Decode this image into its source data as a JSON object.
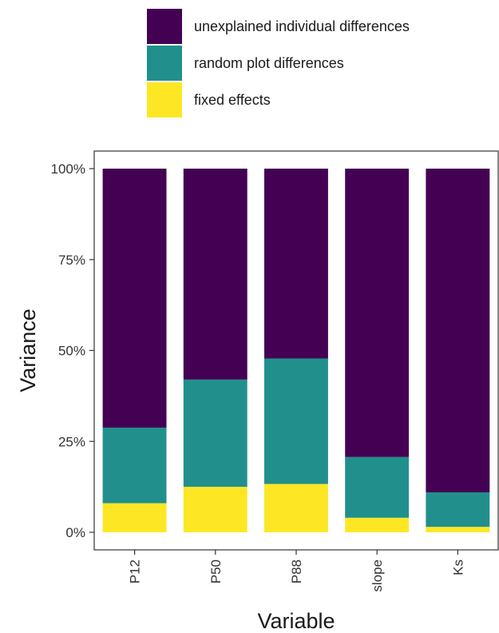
{
  "chart_data": {
    "type": "bar",
    "stacked": true,
    "categories": [
      "P12",
      "P50",
      "P88",
      "slope",
      "Ks"
    ],
    "series": [
      {
        "name": "fixed effects",
        "color": "#FDE725",
        "values": [
          8,
          12.5,
          13.3,
          4,
          1.5
        ]
      },
      {
        "name": "random plot differences",
        "color": "#21908C",
        "values": [
          20.8,
          29.5,
          34.5,
          16.7,
          9.5
        ]
      },
      {
        "name": "unexplained individual differences",
        "color": "#440154",
        "values": [
          71.2,
          58,
          52.2,
          79.3,
          89
        ]
      }
    ],
    "legend_order": [
      "unexplained individual differences",
      "random plot differences",
      "fixed effects"
    ],
    "legend_position": "top",
    "xlabel": "Variable",
    "ylabel": "Variance",
    "ylim": [
      0,
      100
    ],
    "yticks": [
      0,
      25,
      50,
      75,
      100
    ],
    "ytick_labels": [
      "0%",
      "25%",
      "50%",
      "75%",
      "100%"
    ],
    "x_tick_rotation": "vertical",
    "grid": false
  }
}
